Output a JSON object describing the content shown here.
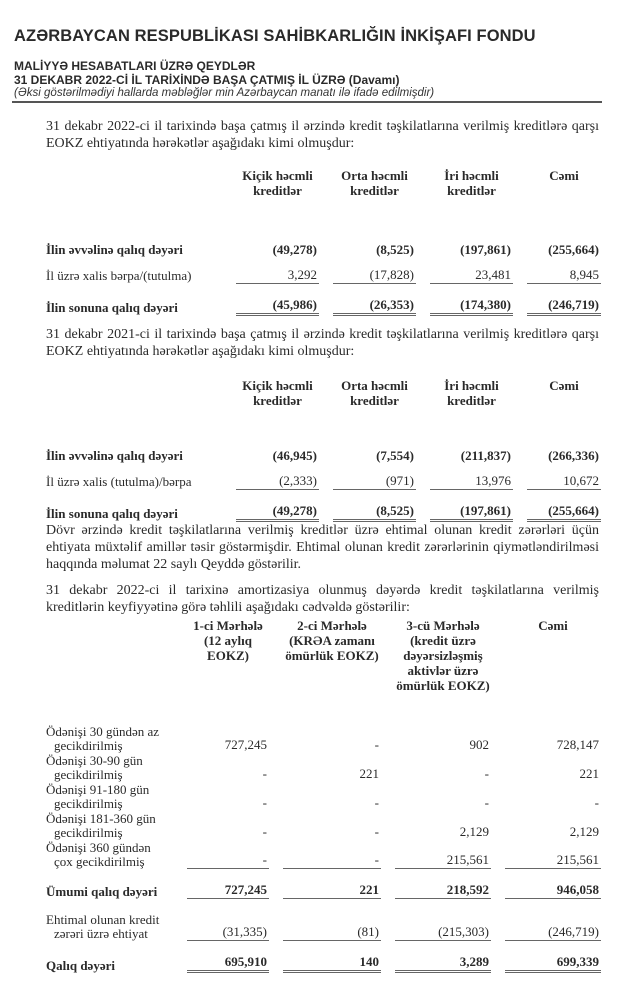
{
  "header": {
    "org_title": "AZƏRBAYCAN RESPUBLİKASI SAHİBKARLIĞIN İNKİŞAFI FONDU",
    "doc_title": "MALİYYƏ HESABATLARI ÜZRƏ QEYDLƏR",
    "period": "31 DEKABR 2022-Cİ İL TARİXİNDƏ BAŞA ÇATMIŞ İL ÜZRƏ (Davamı)",
    "units_note": "(Əksi göstərilmədiyi hallarda məbləğlər min Azərbaycan manatı ilə ifadə edilmişdir)"
  },
  "para1": "31 dekabr 2022-ci il tarixində başa çatmış il ərzində kredit təşkilatlarına verilmiş kreditlərə qarşı EOKZ ehtiyatında hərəkətlər aşağıdakı kimi olmuşdur:",
  "table1": {
    "columns": [
      "Kiçik həcmli kreditlər",
      "Orta həcmli kreditlər",
      "İri həcmli kreditlər",
      "Cəmi"
    ],
    "rows": [
      {
        "label": "İlin əvvəlinə qalıq dəyəri",
        "values": [
          "(49,278)",
          "(8,525)",
          "(197,861)",
          "(255,664)"
        ],
        "style": "bold"
      },
      {
        "label": "İl üzrə xalis bərpa/(tutulma)",
        "values": [
          "3,292",
          "(17,828)",
          "23,481",
          "8,945"
        ],
        "style": "u1"
      },
      {
        "label": "İlin sonuna qalıq dəyəri",
        "values": [
          "(45,986)",
          "(26,353)",
          "(174,380)",
          "(246,719)"
        ],
        "style": "bold u2"
      }
    ]
  },
  "para2": "31 dekabr 2021-ci il tarixində başa çatmış il ərzində kredit təşkilatlarına verilmiş kreditlərə qarşı EOKZ ehtiyatında hərəkətlər aşağıdakı kimi olmuşdur:",
  "table2": {
    "columns": [
      "Kiçik həcmli kreditlər",
      "Orta həcmli kreditlər",
      "İri həcmli kreditlər",
      "Cəmi"
    ],
    "rows": [
      {
        "label": "İlin əvvəlinə qalıq dəyəri",
        "values": [
          "(46,945)",
          "(7,554)",
          "(211,837)",
          "(266,336)"
        ],
        "style": "bold"
      },
      {
        "label": "İl üzrə xalis (tutulma)/bərpa",
        "values": [
          "(2,333)",
          "(971)",
          "13,976",
          "10,672"
        ],
        "style": "u1"
      },
      {
        "label": "İlin sonuna qalıq dəyəri",
        "values": [
          "(49,278)",
          "(8,525)",
          "(197,861)",
          "(255,664)"
        ],
        "style": "bold u2"
      }
    ]
  },
  "para3": "Dövr ərzində kredit təşkilatlarına verilmiş kreditlər üzrə ehtimal olunan kredit zərərləri üçün ehtiyata müxtəlif amillər təsir göstərmişdir. Ehtimal olunan kredit zərərlərinin qiymətləndirilməsi haqqında məlumat 22 saylı Qeyddə göstərilir.",
  "para4": "31 dekabr 2022-ci il tarixinə amortizasiya olunmuş dəyərdə kredit təşkilatlarına verilmiş kreditlərin keyfiyyətinə görə təhlili aşağıdakı cədvəldə göstərilir:",
  "table3": {
    "columns": [
      "1-ci Mərhələ (12 aylıq EOKZ)",
      "2-ci Mərhələ (KRƏA zamanı ömürlük EOKZ)",
      "3-cü Mərhələ (kredit üzrə dəyərsizləşmiş aktivlər üzrə ömürlük EOKZ)",
      "Cəmi"
    ],
    "rows": [
      {
        "label": [
          "Ödənişi 30 gündən az",
          "gecikdirilmiş"
        ],
        "values": [
          "727,245",
          "-",
          "902",
          "728,147"
        ],
        "style": ""
      },
      {
        "label": [
          "Ödənişi 30-90 gün",
          "gecikdirilmiş"
        ],
        "values": [
          "-",
          "221",
          "-",
          "221"
        ],
        "style": ""
      },
      {
        "label": [
          "Ödənişi 91-180 gün",
          "gecikdirilmiş"
        ],
        "values": [
          "-",
          "-",
          "-",
          "-"
        ],
        "style": ""
      },
      {
        "label": [
          "Ödənişi 181-360 gün",
          "gecikdirilmiş"
        ],
        "values": [
          "-",
          "-",
          "2,129",
          "2,129"
        ],
        "style": ""
      },
      {
        "label": [
          "Ödənişi 360 gündən",
          "çox gecikdirilmiş"
        ],
        "values": [
          "-",
          "-",
          "215,561",
          "215,561"
        ],
        "style": "u1"
      },
      {
        "label": [
          "Ümumi qalıq dəyəri"
        ],
        "values": [
          "727,245",
          "221",
          "218,592",
          "946,058"
        ],
        "style": "bold u1"
      },
      {
        "label": [
          "Ehtimal olunan kredit",
          "zərəri üzrə ehtiyat"
        ],
        "values": [
          "(31,335)",
          "(81)",
          "(215,303)",
          "(246,719)"
        ],
        "style": "u1"
      },
      {
        "label": [
          "Qalıq dəyəri"
        ],
        "values": [
          "695,910",
          "140",
          "3,289",
          "699,339"
        ],
        "style": "bold u2"
      }
    ]
  }
}
